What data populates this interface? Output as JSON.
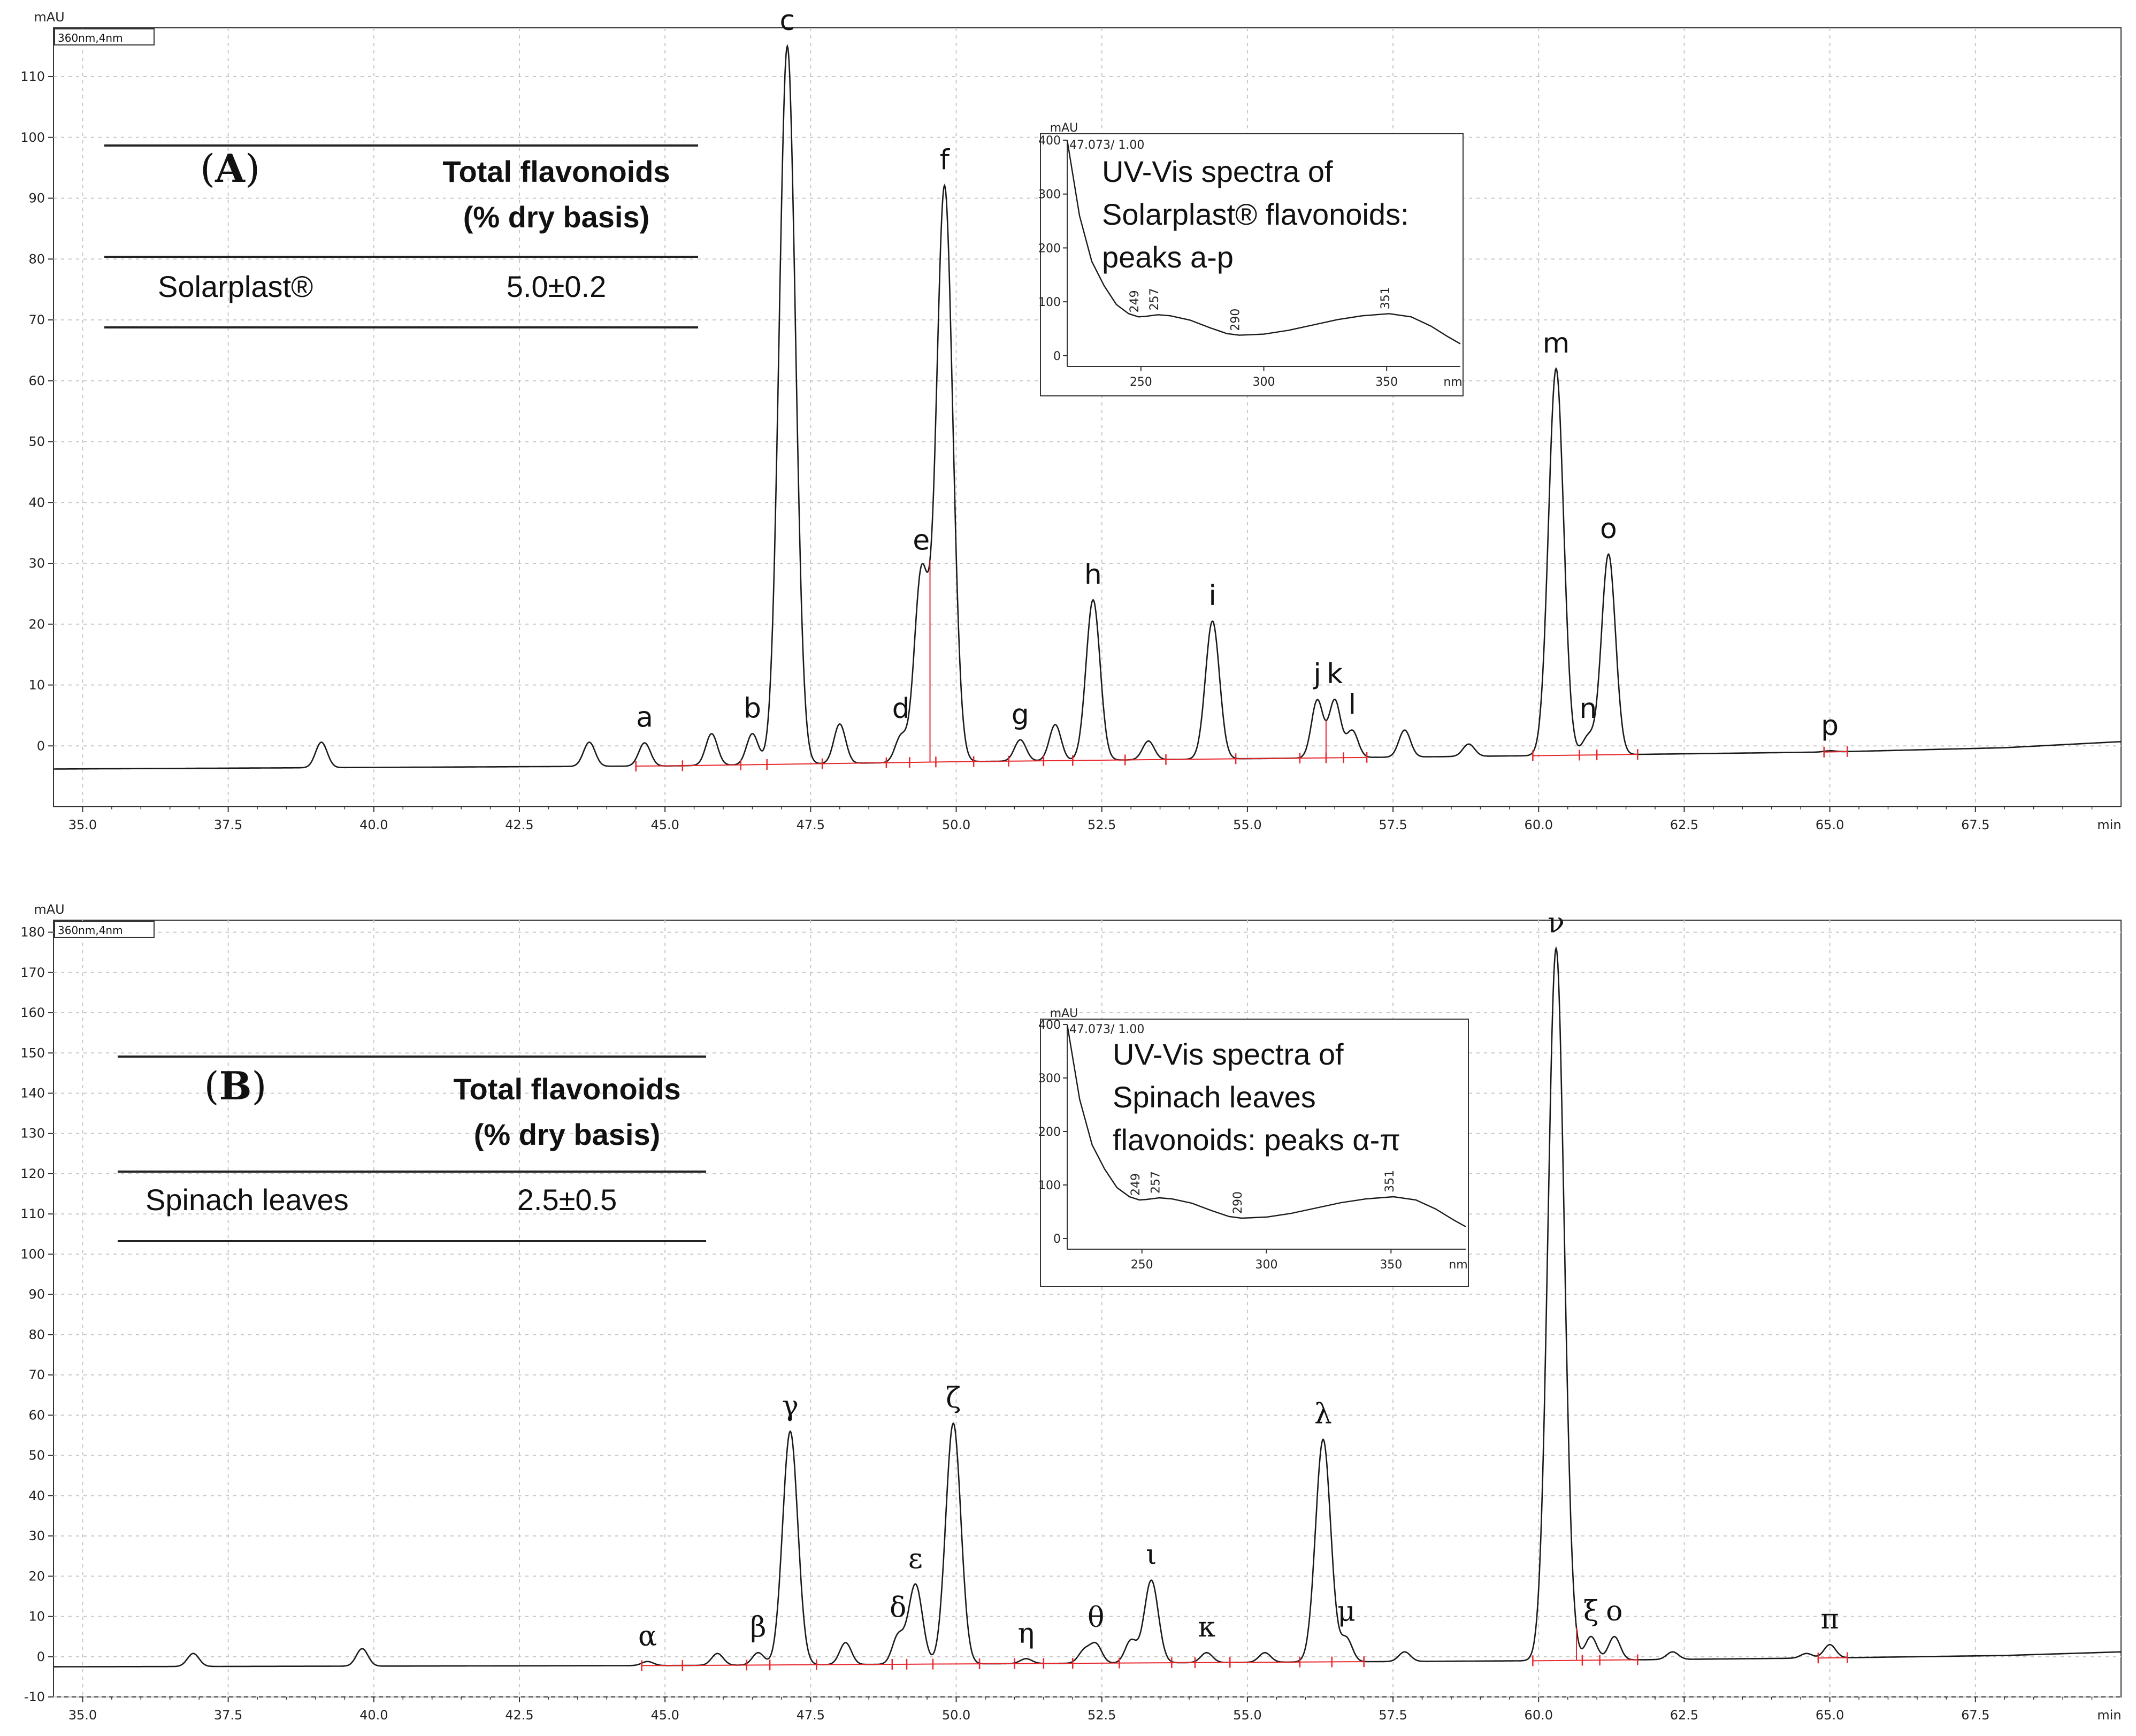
{
  "colors": {
    "trace": "#1a1a1a",
    "integration": "#e8262b",
    "grid": "#c8c8c8",
    "frame": "#333333"
  },
  "chart_data": [
    {
      "type": "line",
      "panel": "A",
      "tag": "360nm,4nm",
      "y_unit": "mAU",
      "x_unit": "min",
      "xlim": [
        34.5,
        70.0
      ],
      "ylim": [
        -10,
        118
      ],
      "x_ticks": [
        "35.0",
        "37.5",
        "40.0",
        "42.5",
        "45.0",
        "47.5",
        "50.0",
        "52.5",
        "55.0",
        "57.5",
        "60.0",
        "62.5",
        "65.0",
        "67.5"
      ],
      "y_ticks": [
        "0",
        "10",
        "20",
        "30",
        "40",
        "50",
        "60",
        "70",
        "80",
        "90",
        "100",
        "110"
      ],
      "baseline": [
        [
          34.5,
          -3.8
        ],
        [
          45.0,
          -3.3
        ],
        [
          50.0,
          -2.6
        ],
        [
          55.0,
          -2.1
        ],
        [
          60.0,
          -1.6
        ],
        [
          65.0,
          -1.0
        ],
        [
          68.0,
          -0.3
        ],
        [
          70.0,
          0.7
        ]
      ],
      "peaks": [
        {
          "label": "a",
          "rt": 44.65,
          "height": 0.5
        },
        {
          "label": "b",
          "rt": 46.5,
          "height": 2.0
        },
        {
          "label": "c",
          "rt": 47.1,
          "height": 115
        },
        {
          "label": "d",
          "rt": 49.05,
          "height": 1.5
        },
        {
          "label": "e",
          "rt": 49.4,
          "height": 28
        },
        {
          "label": "f",
          "rt": 49.8,
          "height": 92
        },
        {
          "label": "g",
          "rt": 51.1,
          "height": 1.0
        },
        {
          "label": "h",
          "rt": 52.35,
          "height": 24
        },
        {
          "label": "i",
          "rt": 54.4,
          "height": 20.5
        },
        {
          "label": "j",
          "rt": 56.2,
          "height": 7.5
        },
        {
          "label": "k",
          "rt": 56.5,
          "height": 7.5
        },
        {
          "label": "l",
          "rt": 56.8,
          "height": 2.5
        },
        {
          "label": "m",
          "rt": 60.3,
          "height": 62
        },
        {
          "label": "n",
          "rt": 60.85,
          "height": 1.5
        },
        {
          "label": "o",
          "rt": 61.2,
          "height": 31.5
        },
        {
          "label": "p",
          "rt": 65.0,
          "height": -0.8
        }
      ],
      "minor_peaks": [
        [
          39.1,
          0.6
        ],
        [
          43.7,
          0.6
        ],
        [
          45.8,
          2.0
        ],
        [
          48.0,
          3.6
        ],
        [
          51.7,
          3.5
        ],
        [
          53.3,
          0.8
        ],
        [
          57.7,
          2.6
        ],
        [
          58.8,
          0.3
        ]
      ],
      "integration_marks": [
        44.5,
        45.3,
        46.3,
        46.75,
        47.7,
        48.8,
        49.2,
        49.65,
        50.3,
        50.9,
        51.5,
        52.0,
        52.9,
        53.6,
        54.8,
        55.9,
        56.35,
        56.65,
        57.05,
        59.9,
        60.7,
        61.0,
        61.7,
        64.9,
        65.3
      ],
      "summary_table": {
        "panel_letter": "A",
        "header": [
          "Total flavonoids",
          "(% dry basis)"
        ],
        "row_name": "Solarplast®",
        "row_value": "5.0±0.2"
      },
      "inset": {
        "tag": "47.073/ 1.00",
        "y_unit": "mAU",
        "x_unit": "nm",
        "xlim": [
          220,
          380
        ],
        "ylim": [
          -20,
          400
        ],
        "x_ticks": [
          "250",
          "300",
          "350"
        ],
        "y_ticks": [
          "0",
          "100",
          "200",
          "300",
          "400"
        ],
        "peak_labels": [
          "249",
          "257",
          "290",
          "351"
        ],
        "spectrum": [
          [
            220,
            400
          ],
          [
            225,
            260
          ],
          [
            230,
            175
          ],
          [
            235,
            130
          ],
          [
            240,
            95
          ],
          [
            245,
            78
          ],
          [
            249,
            72
          ],
          [
            252,
            73
          ],
          [
            257,
            76
          ],
          [
            262,
            74
          ],
          [
            270,
            66
          ],
          [
            278,
            52
          ],
          [
            285,
            41
          ],
          [
            290,
            38
          ],
          [
            300,
            40
          ],
          [
            310,
            47
          ],
          [
            320,
            57
          ],
          [
            330,
            67
          ],
          [
            340,
            74
          ],
          [
            351,
            78
          ],
          [
            360,
            72
          ],
          [
            368,
            55
          ],
          [
            375,
            35
          ],
          [
            380,
            22
          ]
        ],
        "caption": [
          "UV-Vis spectra of",
          "Solarplast® flavonoids:",
          "peaks a-p"
        ]
      }
    },
    {
      "type": "line",
      "panel": "B",
      "tag": "360nm,4nm",
      "y_unit": "mAU",
      "x_unit": "min",
      "xlim": [
        34.5,
        70.0
      ],
      "ylim": [
        -10,
        183
      ],
      "x_ticks": [
        "35.0",
        "37.5",
        "40.0",
        "42.5",
        "45.0",
        "47.5",
        "50.0",
        "52.5",
        "55.0",
        "57.5",
        "60.0",
        "62.5",
        "65.0",
        "67.5"
      ],
      "y_ticks": [
        "-10",
        "0",
        "10",
        "20",
        "30",
        "40",
        "50",
        "60",
        "70",
        "80",
        "90",
        "100",
        "110",
        "120",
        "130",
        "140",
        "150",
        "160",
        "170",
        "180"
      ],
      "baseline": [
        [
          34.5,
          -2.5
        ],
        [
          45.0,
          -2.2
        ],
        [
          50.0,
          -1.8
        ],
        [
          55.0,
          -1.4
        ],
        [
          60.0,
          -1.0
        ],
        [
          65.0,
          -0.3
        ],
        [
          68.0,
          0.3
        ],
        [
          70.0,
          1.2
        ]
      ],
      "peaks": [
        {
          "label": "α",
          "rt": 44.7,
          "height": -1.2
        },
        {
          "label": "β",
          "rt": 46.6,
          "height": 1.0
        },
        {
          "label": "γ",
          "rt": 47.15,
          "height": 56
        },
        {
          "label": "δ",
          "rt": 49.0,
          "height": 5.0
        },
        {
          "label": "ε",
          "rt": 49.3,
          "height": 18
        },
        {
          "label": "ζ",
          "rt": 49.95,
          "height": 58
        },
        {
          "label": "η",
          "rt": 51.2,
          "height": -0.5
        },
        {
          "label": "θ",
          "rt": 52.4,
          "height": 3.0
        },
        {
          "label": "ι",
          "rt": 53.35,
          "height": 19
        },
        {
          "label": "κ",
          "rt": 54.3,
          "height": 1.0
        },
        {
          "label": "λ",
          "rt": 56.3,
          "height": 54
        },
        {
          "label": "μ",
          "rt": 56.7,
          "height": 4.5
        },
        {
          "label": "ν",
          "rt": 60.3,
          "height": 176
        },
        {
          "label": "ξ",
          "rt": 60.9,
          "height": 5.0
        },
        {
          "label": "ο",
          "rt": 61.3,
          "height": 5.0
        },
        {
          "label": "π",
          "rt": 65.0,
          "height": 3.0
        }
      ],
      "minor_peaks": [
        [
          36.9,
          0.8
        ],
        [
          39.8,
          2.0
        ],
        [
          45.9,
          0.8
        ],
        [
          48.1,
          3.5
        ],
        [
          52.2,
          1.5
        ],
        [
          53.0,
          4.0
        ],
        [
          55.3,
          1.0
        ],
        [
          57.7,
          1.2
        ],
        [
          62.3,
          1.2
        ],
        [
          64.6,
          0.8
        ]
      ],
      "integration_marks": [
        44.6,
        45.3,
        46.4,
        46.8,
        47.6,
        48.9,
        49.15,
        49.6,
        50.4,
        51.0,
        51.5,
        52.0,
        52.8,
        53.7,
        54.1,
        54.7,
        55.9,
        56.45,
        57.0,
        59.9,
        60.75,
        61.05,
        61.7,
        64.8,
        65.3
      ],
      "summary_table": {
        "panel_letter": "B",
        "header": [
          "Total flavonoids",
          "(% dry basis)"
        ],
        "row_name": "Spinach leaves",
        "row_value": "2.5±0.5"
      },
      "inset": {
        "tag": "47.073/ 1.00",
        "y_unit": "mAU",
        "x_unit": "nm",
        "xlim": [
          220,
          380
        ],
        "ylim": [
          -20,
          400
        ],
        "x_ticks": [
          "250",
          "300",
          "350"
        ],
        "y_ticks": [
          "0",
          "100",
          "200",
          "300",
          "400"
        ],
        "peak_labels": [
          "249",
          "257",
          "290",
          "351"
        ],
        "spectrum": [
          [
            220,
            400
          ],
          [
            225,
            260
          ],
          [
            230,
            175
          ],
          [
            235,
            130
          ],
          [
            240,
            95
          ],
          [
            245,
            78
          ],
          [
            249,
            72
          ],
          [
            252,
            73
          ],
          [
            257,
            76
          ],
          [
            262,
            74
          ],
          [
            270,
            66
          ],
          [
            278,
            52
          ],
          [
            285,
            41
          ],
          [
            290,
            38
          ],
          [
            300,
            40
          ],
          [
            310,
            47
          ],
          [
            320,
            57
          ],
          [
            330,
            67
          ],
          [
            340,
            74
          ],
          [
            351,
            78
          ],
          [
            360,
            72
          ],
          [
            368,
            55
          ],
          [
            375,
            35
          ],
          [
            380,
            22
          ]
        ],
        "caption": [
          "UV-Vis spectra of",
          "Spinach leaves",
          "flavonoids: peaks α-π"
        ]
      }
    }
  ]
}
